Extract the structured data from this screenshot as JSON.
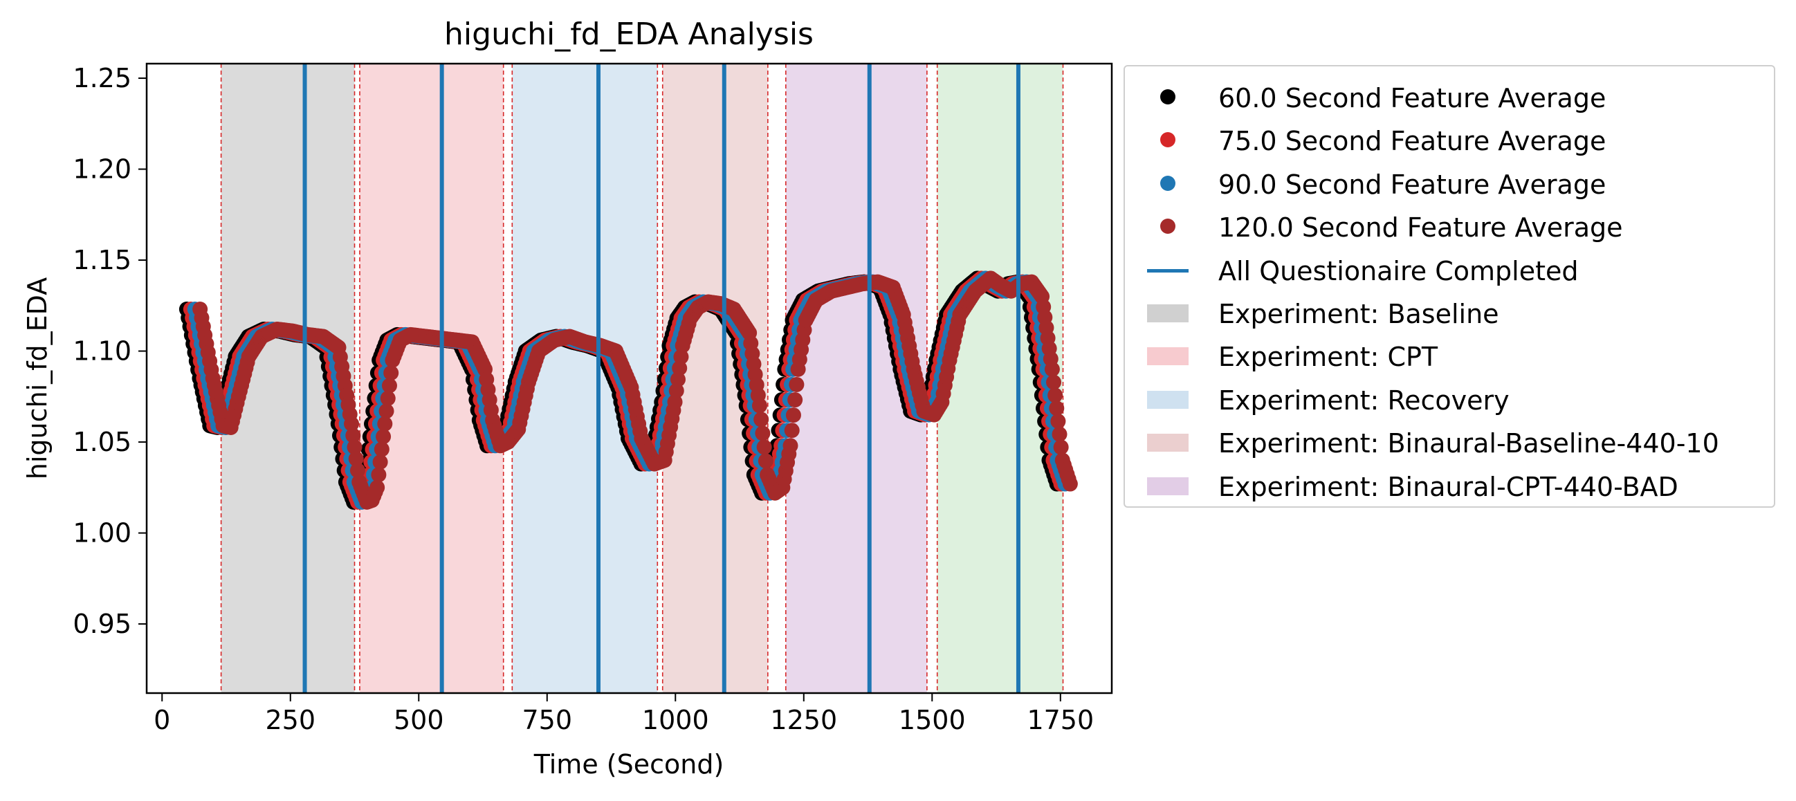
{
  "chart_data": {
    "type": "scatter",
    "title": "higuchi_fd_EDA Analysis",
    "xlabel": "Time (Second)",
    "ylabel": "higuchi_fd_EDA",
    "xlim": [
      -30,
      1850
    ],
    "ylim": [
      0.912,
      1.258
    ],
    "xticks": [
      0,
      250,
      500,
      750,
      1000,
      1250,
      1500,
      1750
    ],
    "yticks": [
      0.95,
      1.0,
      1.05,
      1.1,
      1.15,
      1.2,
      1.25
    ],
    "ytick_labels": [
      "0.95",
      "1.00",
      "1.05",
      "1.10",
      "1.15",
      "1.20",
      "1.25"
    ],
    "grid": false,
    "legend_position": "outside-right",
    "series": [
      {
        "name": "60.0 Second Feature Average",
        "color": "#000000",
        "shift": -12,
        "x": [
          60,
          85,
          105,
          120,
          135,
          155,
          180,
          210,
          240,
          270,
          300,
          330,
          355,
          370,
          385,
          395,
          405,
          420,
          435,
          450,
          470,
          500,
          530,
          560,
          590,
          615,
          630,
          645,
          660,
          680,
          700,
          720,
          750,
          780,
          810,
          840,
          870,
          900,
          920,
          945,
          965,
          985,
          1000,
          1015,
          1030,
          1050,
          1075,
          1100,
          1130,
          1150,
          1165,
          1180,
          1195,
          1210,
          1225,
          1240,
          1260,
          1290,
          1320,
          1350,
          1380,
          1410,
          1430,
          1450,
          1470,
          1490,
          1505,
          1520,
          1540,
          1570,
          1600,
          1620,
          1640,
          1660,
          1680,
          1700,
          1720,
          1740,
          1755
        ],
        "y": [
          1.123,
          1.085,
          1.059,
          1.058,
          1.075,
          1.097,
          1.108,
          1.112,
          1.111,
          1.109,
          1.108,
          1.102,
          1.06,
          1.028,
          1.017,
          1.018,
          1.025,
          1.06,
          1.095,
          1.106,
          1.109,
          1.108,
          1.107,
          1.106,
          1.105,
          1.09,
          1.062,
          1.048,
          1.05,
          1.057,
          1.083,
          1.1,
          1.106,
          1.108,
          1.105,
          1.103,
          1.1,
          1.08,
          1.052,
          1.038,
          1.04,
          1.072,
          1.103,
          1.118,
          1.124,
          1.127,
          1.126,
          1.123,
          1.11,
          1.07,
          1.032,
          1.022,
          1.025,
          1.048,
          1.09,
          1.117,
          1.128,
          1.133,
          1.135,
          1.137,
          1.138,
          1.135,
          1.12,
          1.09,
          1.067,
          1.065,
          1.072,
          1.095,
          1.12,
          1.133,
          1.14,
          1.136,
          1.133,
          1.137,
          1.138,
          1.13,
          1.09,
          1.04,
          1.027
        ]
      },
      {
        "name": "75.0 Second Feature Average",
        "color": "#d62728",
        "shift": -4,
        "x": [
          60,
          85,
          105,
          120,
          135,
          155,
          180,
          210,
          240,
          270,
          300,
          330,
          355,
          370,
          385,
          395,
          405,
          420,
          435,
          450,
          470,
          500,
          530,
          560,
          590,
          615,
          630,
          645,
          660,
          680,
          700,
          720,
          750,
          780,
          810,
          840,
          870,
          900,
          920,
          945,
          965,
          985,
          1000,
          1015,
          1030,
          1050,
          1075,
          1100,
          1130,
          1150,
          1165,
          1180,
          1195,
          1210,
          1225,
          1240,
          1260,
          1290,
          1320,
          1350,
          1380,
          1410,
          1430,
          1450,
          1470,
          1490,
          1505,
          1520,
          1540,
          1570,
          1600,
          1620,
          1640,
          1660,
          1680,
          1700,
          1720,
          1740,
          1755
        ],
        "y": [
          1.123,
          1.085,
          1.059,
          1.058,
          1.075,
          1.097,
          1.108,
          1.112,
          1.111,
          1.109,
          1.108,
          1.102,
          1.06,
          1.028,
          1.017,
          1.018,
          1.025,
          1.06,
          1.095,
          1.106,
          1.109,
          1.108,
          1.107,
          1.106,
          1.105,
          1.09,
          1.062,
          1.048,
          1.05,
          1.057,
          1.083,
          1.1,
          1.106,
          1.108,
          1.105,
          1.103,
          1.1,
          1.08,
          1.052,
          1.038,
          1.04,
          1.072,
          1.103,
          1.118,
          1.124,
          1.127,
          1.126,
          1.123,
          1.11,
          1.07,
          1.032,
          1.022,
          1.025,
          1.048,
          1.09,
          1.117,
          1.128,
          1.133,
          1.135,
          1.137,
          1.138,
          1.135,
          1.12,
          1.09,
          1.067,
          1.065,
          1.072,
          1.095,
          1.12,
          1.133,
          1.14,
          1.136,
          1.133,
          1.137,
          1.138,
          1.13,
          1.09,
          1.04,
          1.027
        ]
      },
      {
        "name": "90.0 Second Feature Average",
        "color": "#1f77b4",
        "shift": 4,
        "x": [
          60,
          85,
          105,
          120,
          135,
          155,
          180,
          210,
          240,
          270,
          300,
          330,
          355,
          370,
          385,
          395,
          405,
          420,
          435,
          450,
          470,
          500,
          530,
          560,
          590,
          615,
          630,
          645,
          660,
          680,
          700,
          720,
          750,
          780,
          810,
          840,
          870,
          900,
          920,
          945,
          965,
          985,
          1000,
          1015,
          1030,
          1050,
          1075,
          1100,
          1130,
          1150,
          1165,
          1180,
          1195,
          1210,
          1225,
          1240,
          1260,
          1290,
          1320,
          1350,
          1380,
          1410,
          1430,
          1450,
          1470,
          1490,
          1505,
          1520,
          1540,
          1570,
          1600,
          1620,
          1640,
          1660,
          1680,
          1700,
          1720,
          1740,
          1755
        ],
        "y": [
          1.123,
          1.085,
          1.059,
          1.058,
          1.075,
          1.097,
          1.108,
          1.112,
          1.111,
          1.109,
          1.108,
          1.102,
          1.06,
          1.028,
          1.017,
          1.018,
          1.025,
          1.06,
          1.095,
          1.106,
          1.109,
          1.108,
          1.107,
          1.106,
          1.105,
          1.09,
          1.062,
          1.048,
          1.05,
          1.057,
          1.083,
          1.1,
          1.106,
          1.108,
          1.105,
          1.103,
          1.1,
          1.08,
          1.052,
          1.038,
          1.04,
          1.072,
          1.103,
          1.118,
          1.124,
          1.127,
          1.126,
          1.123,
          1.11,
          1.07,
          1.032,
          1.022,
          1.025,
          1.048,
          1.09,
          1.117,
          1.128,
          1.133,
          1.135,
          1.137,
          1.138,
          1.135,
          1.12,
          1.09,
          1.067,
          1.065,
          1.072,
          1.095,
          1.12,
          1.133,
          1.14,
          1.136,
          1.133,
          1.137,
          1.138,
          1.13,
          1.09,
          1.04,
          1.027
        ]
      },
      {
        "name": "120.0 Second Feature Average",
        "color": "#a52a2a",
        "shift": 14,
        "x": [
          60,
          85,
          105,
          120,
          135,
          155,
          180,
          210,
          240,
          270,
          300,
          330,
          355,
          370,
          385,
          395,
          405,
          420,
          435,
          450,
          470,
          500,
          530,
          560,
          590,
          615,
          630,
          645,
          660,
          680,
          700,
          720,
          750,
          780,
          810,
          840,
          870,
          900,
          920,
          945,
          965,
          985,
          1000,
          1015,
          1030,
          1050,
          1075,
          1100,
          1130,
          1150,
          1165,
          1180,
          1195,
          1210,
          1225,
          1240,
          1260,
          1290,
          1320,
          1350,
          1380,
          1410,
          1430,
          1450,
          1470,
          1490,
          1505,
          1520,
          1540,
          1570,
          1600,
          1620,
          1640,
          1660,
          1680,
          1700,
          1720,
          1740,
          1755
        ],
        "y": [
          1.123,
          1.085,
          1.059,
          1.058,
          1.075,
          1.097,
          1.108,
          1.112,
          1.111,
          1.109,
          1.108,
          1.102,
          1.06,
          1.028,
          1.017,
          1.018,
          1.025,
          1.06,
          1.095,
          1.106,
          1.109,
          1.108,
          1.107,
          1.106,
          1.105,
          1.09,
          1.062,
          1.048,
          1.05,
          1.057,
          1.083,
          1.1,
          1.106,
          1.108,
          1.105,
          1.103,
          1.1,
          1.08,
          1.052,
          1.038,
          1.04,
          1.072,
          1.103,
          1.118,
          1.124,
          1.127,
          1.126,
          1.123,
          1.11,
          1.07,
          1.032,
          1.022,
          1.025,
          1.048,
          1.09,
          1.117,
          1.128,
          1.133,
          1.135,
          1.137,
          1.138,
          1.135,
          1.12,
          1.09,
          1.067,
          1.065,
          1.072,
          1.095,
          1.12,
          1.133,
          1.14,
          1.136,
          1.133,
          1.137,
          1.138,
          1.13,
          1.09,
          1.04,
          1.027
        ]
      }
    ],
    "questionnaire_lines": {
      "name": "All Questionaire Completed",
      "color": "#1f77b4",
      "x": [
        278,
        545,
        850,
        1095,
        1378,
        1668
      ]
    },
    "experiment_regions": [
      {
        "name": "Experiment: Baseline",
        "color": "#bdbdbd",
        "start": 115,
        "end": 375
      },
      {
        "name": "Experiment: CPT",
        "color": "#f4b6bc",
        "start": 385,
        "end": 665
      },
      {
        "name": "Experiment: Recovery",
        "color": "#bcd5ea",
        "start": 682,
        "end": 965
      },
      {
        "name": "Experiment: Binaural-Baseline-440-10",
        "color": "#e3bcbc",
        "start": 975,
        "end": 1180
      },
      {
        "name": "Experiment: Binaural-CPT-440-BAD",
        "color": "#d7b8dc",
        "start": 1215,
        "end": 1490
      },
      {
        "name": "",
        "color": "#c3e6c3",
        "start": 1510,
        "end": 1755
      }
    ],
    "boundary_lines": {
      "color": "#d62728",
      "x": [
        115,
        375,
        385,
        665,
        682,
        965,
        975,
        1180,
        1215,
        1490,
        1510,
        1755
      ]
    }
  },
  "legend": {
    "items": [
      {
        "label": "60.0 Second Feature Average",
        "kind": "dot",
        "color": "#000000"
      },
      {
        "label": "75.0 Second Feature Average",
        "kind": "dot",
        "color": "#d62728"
      },
      {
        "label": "90.0 Second Feature Average",
        "kind": "dot",
        "color": "#1f77b4"
      },
      {
        "label": "120.0 Second Feature Average",
        "kind": "dot",
        "color": "#a52a2a"
      },
      {
        "label": "All Questionaire Completed",
        "kind": "line",
        "color": "#1f77b4"
      },
      {
        "label": "Experiment: Baseline",
        "kind": "patch",
        "color": "#bdbdbd"
      },
      {
        "label": "Experiment: CPT",
        "kind": "patch",
        "color": "#f4b6bc"
      },
      {
        "label": "Experiment: Recovery",
        "kind": "patch",
        "color": "#bcd5ea"
      },
      {
        "label": "Experiment: Binaural-Baseline-440-10",
        "kind": "patch",
        "color": "#e3bcbc"
      },
      {
        "label": "Experiment: Binaural-CPT-440-BAD",
        "kind": "patch",
        "color": "#d7b8dc"
      }
    ]
  }
}
